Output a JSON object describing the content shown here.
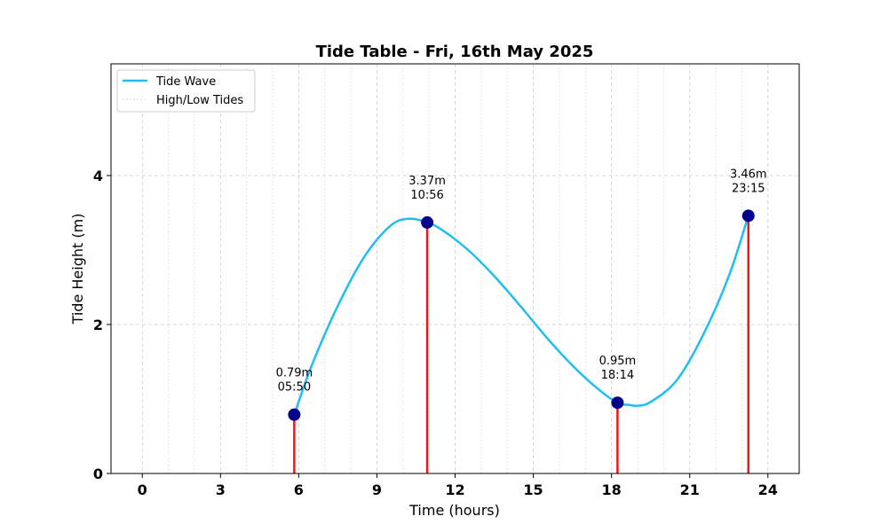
{
  "chart_data": {
    "type": "line",
    "title": "Tide Table - Fri, 16th May 2025",
    "xlabel": "Time (hours)",
    "ylabel": "Tide Height (m)",
    "xlim": [
      -1.2,
      25.2
    ],
    "ylim": [
      0,
      5.5
    ],
    "x_ticks": [
      0,
      3,
      6,
      9,
      12,
      15,
      18,
      21,
      24
    ],
    "x_tick_labels": [
      "0",
      "3",
      "6",
      "9",
      "12",
      "15",
      "18",
      "21",
      "24"
    ],
    "y_ticks": [
      0,
      2,
      4
    ],
    "y_tick_labels": [
      "0",
      "2",
      "4"
    ],
    "x_minor_grid_step": 1,
    "grid": true,
    "legend_position": "top-left",
    "series": [
      {
        "name": "Tide Wave",
        "color": "#1ebef0",
        "style": "line",
        "x": [
          5.83,
          6.5,
          7.5,
          8.5,
          9.5,
          10.2,
          10.93,
          11.5,
          12.5,
          13.5,
          14.5,
          15.5,
          16.5,
          17.5,
          18.23,
          18.7,
          19.0,
          19.5,
          20.5,
          21.5,
          22.5,
          23.25
        ],
        "y": [
          0.79,
          1.45,
          2.25,
          2.9,
          3.32,
          3.42,
          3.37,
          3.27,
          3.0,
          2.65,
          2.25,
          1.83,
          1.45,
          1.13,
          0.95,
          0.92,
          0.91,
          0.96,
          1.25,
          1.85,
          2.65,
          3.46
        ]
      },
      {
        "name": "High/Low Tides",
        "color": "#e8191a",
        "style": "stems",
        "marker_color": "#00008b",
        "points": [
          {
            "x": 5.83,
            "y": 0.79,
            "height_label": "0.79m",
            "time_label": "05:50"
          },
          {
            "x": 10.93,
            "y": 3.37,
            "height_label": "3.37m",
            "time_label": "10:56"
          },
          {
            "x": 18.23,
            "y": 0.95,
            "height_label": "0.95m",
            "time_label": "18:14"
          },
          {
            "x": 23.25,
            "y": 3.46,
            "height_label": "3.46m",
            "time_label": "23:15"
          }
        ]
      }
    ]
  }
}
